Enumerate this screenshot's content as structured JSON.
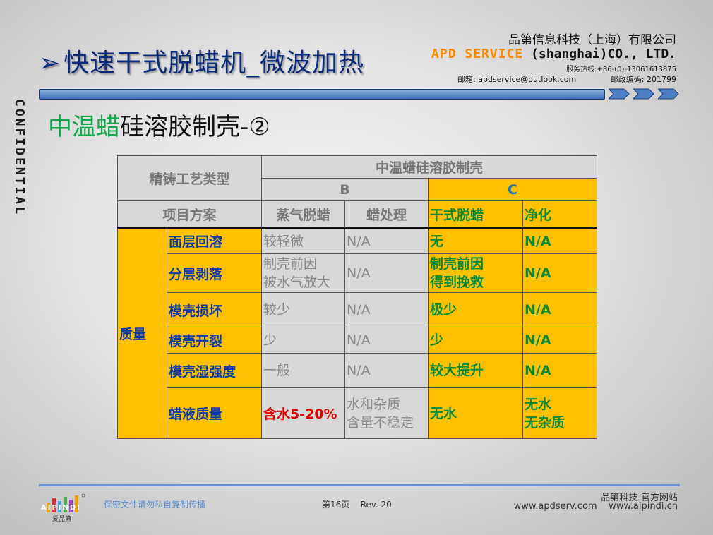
{
  "header": {
    "title_arrow": "➢",
    "title": "快速干式脱蜡机_微波加热",
    "company_cn": "品第信息科技（上海）有限公司",
    "company_en_brand": "APD SERVICE",
    "company_en_rest": "(shanghai)CO., LTD.",
    "hotline": "服务热线:+86-(0)-13061613875",
    "email": "邮箱: apdservice@outlook.com",
    "postcode": "邮政编码: 201799"
  },
  "confidential": "CONFIDENTIAL",
  "subtitle": {
    "green": "中温蜡",
    "black": "硅溶胶制壳-②"
  },
  "table": {
    "type_label": "精铸工艺类型",
    "main_header": "中温蜡硅溶胶制壳",
    "group_b": "B",
    "group_c": "C",
    "item_label": "项目方案",
    "col_steam": "蒸气脱蜡",
    "col_wax": "蜡处理",
    "col_dry": "干式脱蜡",
    "col_clean": "净化",
    "category": "质量",
    "rows": [
      {
        "name": "面层回溶",
        "steam": "较轻微",
        "wax": "N/A",
        "dry": "无",
        "clean": "N/A"
      },
      {
        "name": "分层剥落",
        "steam": "制壳前因\n被水气放大",
        "wax": "N/A",
        "dry": "制壳前因\n得到挽救",
        "clean": "N/A"
      },
      {
        "name": "模壳损坏",
        "steam": "较少",
        "wax": "N/A",
        "dry": "极少",
        "clean": "N/A"
      },
      {
        "name": "模壳开裂",
        "steam": "少",
        "wax": "N/A",
        "dry": "少",
        "clean": "N/A"
      },
      {
        "name": "模壳湿强度",
        "steam": "一般",
        "wax": "N/A",
        "dry": "较大提升",
        "clean": "N/A"
      },
      {
        "name": "蜡液质量",
        "steam": "含水5-20%",
        "wax": "水和杂质\n含量不稳定",
        "dry": "无水",
        "clean": "无水\n无杂质"
      }
    ]
  },
  "footer": {
    "warning": "保密文件请勿私自复制传播",
    "page": "第16页",
    "rev": "Rev. 20",
    "site_label": "品第科技-官方网站",
    "site_urls": "www.apdserv.com    www.aipindi.cn",
    "logo_text": "爱品第",
    "logo_letters": "AIPINDI"
  },
  "colors": {
    "accent_orange": "#ffc000",
    "title_blue": "#0a2a7a",
    "green": "#11a84a",
    "red": "#e00000"
  }
}
